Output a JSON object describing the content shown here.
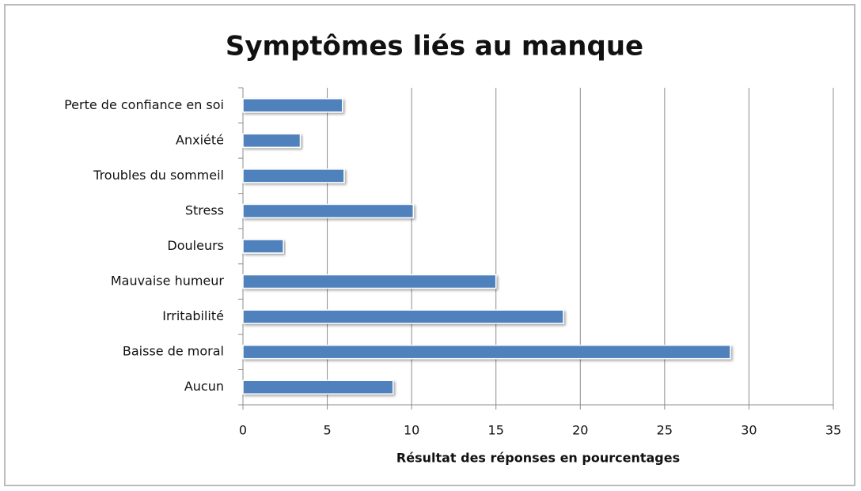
{
  "chart_data": {
    "type": "barh",
    "title": "Symptômes liés au manque",
    "x_label": "Résultat des réponses en pourcentages",
    "categories": [
      "Perte de confiance en soi",
      "Anxiété",
      "Troubles du sommeil",
      "Stress",
      "Douleurs",
      "Mauvaise humeur",
      "Irritabilité",
      "Baisse de moral",
      "Aucun"
    ],
    "values": [
      5.9,
      3.4,
      6.0,
      10.1,
      2.4,
      15.0,
      19.0,
      28.9,
      8.9
    ],
    "color": "#4f81bd",
    "xlim": [
      0,
      35
    ],
    "xticks": [
      0,
      5,
      10,
      15,
      20,
      25,
      30,
      35
    ],
    "grid": true
  }
}
